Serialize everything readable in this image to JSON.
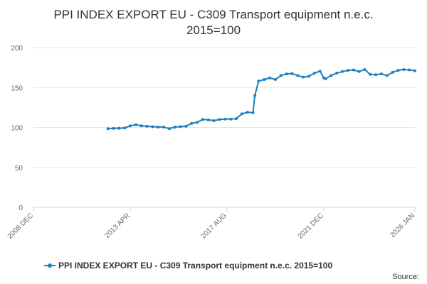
{
  "chart_data": {
    "type": "line",
    "title_lines": [
      "PPI INDEX EXPORT EU - C309 Transport equipment n.e.c.",
      "2015=100"
    ],
    "ylim": [
      0,
      200
    ],
    "yticks": [
      0,
      50,
      100,
      150,
      200
    ],
    "xlim": [
      "2008-12",
      "2026-01"
    ],
    "xticks": [
      {
        "date": "2008-12",
        "label": "2008 DEC"
      },
      {
        "date": "2013-04",
        "label": "2013 APR"
      },
      {
        "date": "2017-08",
        "label": "2017 AUG"
      },
      {
        "date": "2021-12",
        "label": "2021 DEC"
      },
      {
        "date": "2026-01",
        "label": "2026 JAN"
      }
    ],
    "grid": true,
    "legend_position": "bottom",
    "series": [
      {
        "name": "PPI INDEX EXPORT EU - C309 Transport equipment n.e.c. 2015=100",
        "color": "#1f7fbf",
        "points": [
          [
            "2012-04",
            98.5
          ],
          [
            "2012-07",
            98.8
          ],
          [
            "2012-10",
            99.0
          ],
          [
            "2013-01",
            99.3
          ],
          [
            "2013-04",
            102.0
          ],
          [
            "2013-07",
            103.5
          ],
          [
            "2013-10",
            102.0
          ],
          [
            "2014-01",
            101.5
          ],
          [
            "2014-04",
            101.0
          ],
          [
            "2014-07",
            100.5
          ],
          [
            "2014-10",
            100.5
          ],
          [
            "2015-01",
            98.5
          ],
          [
            "2015-04",
            100.5
          ],
          [
            "2015-07",
            101.0
          ],
          [
            "2015-10",
            101.5
          ],
          [
            "2016-01",
            105.0
          ],
          [
            "2016-04",
            106.5
          ],
          [
            "2016-07",
            110.0
          ],
          [
            "2016-10",
            109.5
          ],
          [
            "2017-01",
            108.5
          ],
          [
            "2017-04",
            110.0
          ],
          [
            "2017-07",
            110.5
          ],
          [
            "2017-10",
            110.5
          ],
          [
            "2018-01",
            111.0
          ],
          [
            "2018-04",
            117.0
          ],
          [
            "2018-07",
            119.0
          ],
          [
            "2018-10",
            118.5
          ],
          [
            "2018-11",
            140.0
          ],
          [
            "2019-01",
            158.0
          ],
          [
            "2019-04",
            160.0
          ],
          [
            "2019-07",
            162.0
          ],
          [
            "2019-10",
            160.0
          ],
          [
            "2020-01",
            165.0
          ],
          [
            "2020-04",
            167.0
          ],
          [
            "2020-07",
            167.5
          ],
          [
            "2020-10",
            165.0
          ],
          [
            "2021-01",
            163.0
          ],
          [
            "2021-04",
            164.0
          ],
          [
            "2021-07",
            168.0
          ],
          [
            "2021-10",
            170.5
          ],
          [
            "2021-12",
            162.0
          ],
          [
            "2022-01",
            161.0
          ],
          [
            "2022-04",
            165.0
          ],
          [
            "2022-07",
            168.0
          ],
          [
            "2022-10",
            170.0
          ],
          [
            "2023-01",
            171.5
          ],
          [
            "2023-04",
            172.0
          ],
          [
            "2023-07",
            170.0
          ],
          [
            "2023-10",
            172.5
          ],
          [
            "2024-01",
            166.5
          ],
          [
            "2024-04",
            166.0
          ],
          [
            "2024-07",
            167.0
          ],
          [
            "2024-10",
            165.0
          ],
          [
            "2025-01",
            169.0
          ],
          [
            "2025-04",
            171.5
          ],
          [
            "2025-07",
            172.5
          ],
          [
            "2025-10",
            172.0
          ],
          [
            "2026-01",
            171.0
          ]
        ]
      }
    ]
  },
  "source": {
    "label": "Source:"
  }
}
